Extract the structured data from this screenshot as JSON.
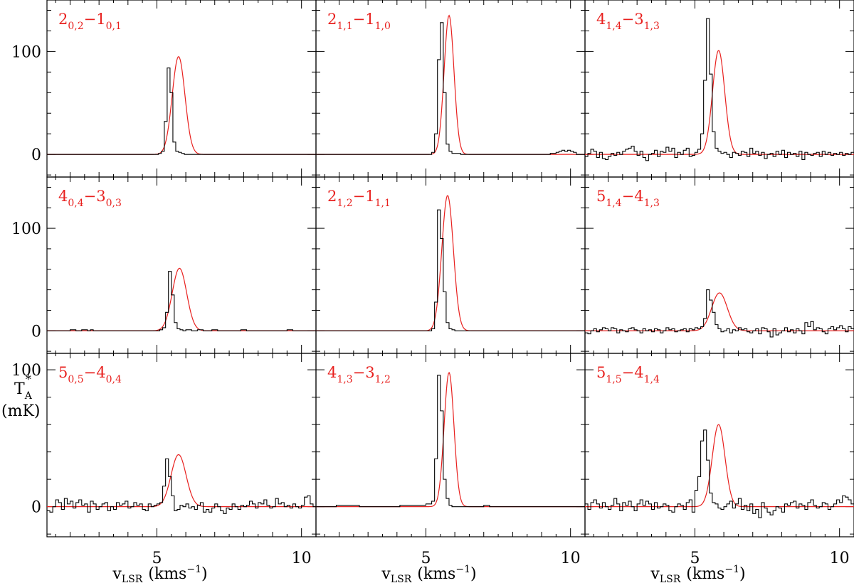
{
  "chart_data": [
    {
      "type": "line",
      "transition": {
        "base": "2",
        "sub1": "0,2",
        "dash": "−",
        "base2": "1",
        "sub2": "0,1"
      },
      "x_range": [
        1.2,
        10.5
      ],
      "y_range": [
        -22,
        150
      ],
      "series": [
        {
          "style": "histogram",
          "values_mK": [
            0,
            0,
            0,
            0,
            0,
            0,
            0,
            0,
            0,
            0,
            0,
            0,
            0,
            0,
            0,
            0,
            0,
            0,
            0,
            0,
            0,
            0,
            0,
            0,
            0,
            0,
            0,
            0,
            0,
            0,
            0,
            0,
            0,
            0,
            0,
            0,
            0,
            0,
            0,
            1,
            3,
            32,
            84,
            60,
            12,
            3,
            2,
            1,
            0,
            0,
            0,
            0,
            0,
            0,
            0,
            0,
            0,
            0,
            0,
            0,
            0,
            0,
            0,
            0,
            0,
            0,
            0,
            0,
            0,
            0,
            0,
            0,
            0,
            0,
            0,
            0,
            0,
            0,
            0,
            0,
            0,
            0,
            0,
            0,
            0,
            0,
            0,
            0,
            0,
            0,
            0,
            0,
            0,
            0
          ]
        },
        {
          "style": "gaussian",
          "peak": 95,
          "center": 5.75,
          "sigma": 0.22
        }
      ]
    },
    {
      "type": "line",
      "transition": {
        "base": "2",
        "sub1": "1,1",
        "dash": "−",
        "base2": "1",
        "sub2": "1,0"
      },
      "x_range": [
        1.2,
        10.5
      ],
      "y_range": [
        -22,
        150
      ],
      "series": [
        {
          "style": "histogram",
          "values_mK": [
            0,
            0,
            0,
            0,
            0,
            0,
            0,
            0,
            0,
            0,
            0,
            0,
            0,
            0,
            0,
            0,
            0,
            0,
            0,
            0,
            0,
            0,
            0,
            0,
            0,
            0,
            0,
            0,
            0,
            0,
            0,
            0,
            0,
            0,
            0,
            0,
            0,
            0,
            0,
            0,
            2,
            20,
            92,
            128,
            60,
            10,
            3,
            1,
            1,
            1,
            0,
            0,
            0,
            0,
            0,
            0,
            0,
            0,
            0,
            0,
            0,
            0,
            0,
            0,
            0,
            0,
            0,
            0,
            0,
            0,
            0,
            0,
            0,
            0,
            0,
            0,
            0,
            0,
            0,
            0,
            0,
            1,
            1,
            2,
            3,
            4,
            3,
            4,
            3,
            2,
            0,
            0,
            0
          ]
        },
        {
          "style": "gaussian",
          "peak": 135,
          "center": 5.8,
          "sigma": 0.17
        }
      ]
    },
    {
      "type": "line",
      "transition": {
        "base": "4",
        "sub1": "1,4",
        "dash": "−",
        "base2": "3",
        "sub2": "1,3"
      },
      "x_range": [
        1.2,
        10.5
      ],
      "y_range": [
        -22,
        150
      ],
      "series": [
        {
          "style": "histogram",
          "values_mK": [
            -2,
            1,
            5,
            3,
            -3,
            2,
            -4,
            -5,
            -2,
            1,
            -1,
            2,
            0,
            3,
            5,
            6,
            8,
            3,
            -1,
            3,
            -3,
            -6,
            0,
            1,
            4,
            -2,
            3,
            2,
            7,
            3,
            6,
            -3,
            2,
            0,
            4,
            6,
            -2,
            -1,
            2,
            5,
            20,
            72,
            132,
            78,
            22,
            6,
            3,
            1,
            2,
            0,
            -3,
            2,
            1,
            -1,
            3,
            2,
            -2,
            6,
            1,
            3,
            -1,
            2,
            -4,
            0,
            1,
            -2,
            3,
            0,
            4,
            -3,
            2,
            0,
            1,
            -2,
            3,
            -5,
            2,
            0,
            -1,
            1,
            2,
            -2,
            3,
            0,
            2,
            -1,
            1,
            0,
            2,
            -1,
            1,
            0,
            2
          ]
        },
        {
          "style": "gaussian",
          "peak": 101,
          "center": 5.82,
          "sigma": 0.21
        }
      ]
    },
    {
      "type": "line",
      "transition": {
        "base": "4",
        "sub1": "0,4",
        "dash": "−",
        "base2": "3",
        "sub2": "0,3"
      },
      "x_range": [
        1.2,
        10.5
      ],
      "y_range": [
        -22,
        150
      ],
      "series": [
        {
          "style": "histogram",
          "values_mK": [
            0,
            0,
            0,
            0,
            0,
            0,
            0,
            0,
            1,
            1,
            0,
            0,
            1,
            1,
            0,
            1,
            0,
            0,
            0,
            0,
            0,
            0,
            0,
            0,
            0,
            0,
            0,
            0,
            0,
            0,
            0,
            0,
            0,
            0,
            0,
            0,
            0,
            0,
            0,
            1,
            3,
            18,
            58,
            35,
            8,
            2,
            1,
            0,
            1,
            1,
            0,
            0,
            1,
            1,
            0,
            0,
            0,
            1,
            1,
            0,
            0,
            0,
            0,
            0,
            0,
            0,
            0,
            1,
            1,
            0,
            0,
            0,
            0,
            0,
            0,
            0,
            0,
            0,
            0,
            0,
            0,
            0,
            0,
            1,
            1,
            0,
            0,
            0,
            0,
            0,
            0,
            0,
            0
          ]
        },
        {
          "style": "gaussian",
          "peak": 61,
          "center": 5.78,
          "sigma": 0.25
        }
      ]
    },
    {
      "type": "line",
      "transition": {
        "base": "2",
        "sub1": "1,2",
        "dash": "−",
        "base2": "1",
        "sub2": "1,1"
      },
      "x_range": [
        1.2,
        10.5
      ],
      "y_range": [
        -22,
        150
      ],
      "series": [
        {
          "style": "histogram",
          "values_mK": [
            0,
            0,
            0,
            0,
            0,
            0,
            0,
            0,
            0,
            0,
            0,
            0,
            0,
            0,
            0,
            0,
            0,
            0,
            0,
            0,
            0,
            0,
            0,
            0,
            0,
            0,
            0,
            0,
            0,
            0,
            0,
            0,
            0,
            0,
            0,
            0,
            0,
            0,
            0,
            0,
            2,
            28,
            118,
            90,
            38,
            8,
            2,
            1,
            0,
            0,
            0,
            0,
            0,
            0,
            0,
            0,
            0,
            0,
            0,
            0,
            0,
            0,
            0,
            0,
            0,
            0,
            0,
            0,
            0,
            0,
            0,
            0,
            0,
            0,
            0,
            0,
            0,
            0,
            0,
            0,
            0,
            0,
            0,
            0,
            0,
            0,
            0,
            0,
            0,
            0,
            0,
            0,
            0
          ]
        },
        {
          "style": "gaussian",
          "peak": 132,
          "center": 5.75,
          "sigma": 0.2
        }
      ]
    },
    {
      "type": "line",
      "transition": {
        "base": "5",
        "sub1": "1,4",
        "dash": "−",
        "base2": "4",
        "sub2": "1,3"
      },
      "x_range": [
        1.2,
        10.5
      ],
      "y_range": [
        -22,
        150
      ],
      "series": [
        {
          "style": "histogram",
          "values_mK": [
            -2,
            -3,
            0,
            2,
            -1,
            1,
            3,
            2,
            0,
            3,
            2,
            -2,
            1,
            0,
            -1,
            2,
            3,
            1,
            0,
            -2,
            2,
            0,
            1,
            -1,
            2,
            1,
            -2,
            0,
            3,
            1,
            2,
            -1,
            0,
            1,
            2,
            -1,
            2,
            1,
            3,
            2,
            4,
            12,
            40,
            30,
            18,
            6,
            2,
            -1,
            0,
            2,
            -2,
            1,
            0,
            3,
            1,
            2,
            -1,
            -2,
            0,
            2,
            -3,
            3,
            2,
            -1,
            -6,
            2,
            -4,
            -2,
            0,
            3,
            -1,
            1,
            -2,
            2,
            0,
            -3,
            8,
            4,
            9,
            1,
            3,
            2,
            -1,
            -3,
            2,
            4,
            1,
            3,
            5,
            2,
            -1,
            4,
            2
          ]
        },
        {
          "style": "gaussian",
          "peak": 37,
          "center": 5.85,
          "sigma": 0.27
        }
      ]
    },
    {
      "type": "line",
      "transition": {
        "base": "5",
        "sub1": "0,5",
        "dash": "−",
        "base2": "4",
        "sub2": "0,4"
      },
      "x_range": [
        1.2,
        10.5
      ],
      "y_range": [
        -22,
        112
      ],
      "series": [
        {
          "style": "histogram",
          "values_mK": [
            -3,
            -4,
            0,
            5,
            3,
            -2,
            6,
            2,
            4,
            -1,
            3,
            5,
            1,
            2,
            -4,
            4,
            2,
            -2,
            0,
            2,
            3,
            -3,
            0,
            -2,
            3,
            1,
            2,
            4,
            -1,
            0,
            3,
            1,
            2,
            -2,
            -3,
            2,
            0,
            1,
            2,
            3,
            15,
            35,
            22,
            8,
            -3,
            -2,
            1,
            0,
            2,
            -1,
            0,
            -2,
            1,
            3,
            -4,
            -2,
            -4,
            -1,
            2,
            0,
            -3,
            -5,
            -1,
            -2,
            2,
            0,
            -2,
            1,
            0,
            1,
            4,
            2,
            -1,
            3,
            2,
            5,
            1,
            -1,
            0,
            6,
            2,
            3,
            0,
            1,
            -1,
            2,
            0,
            -1,
            1,
            7,
            8,
            2,
            0
          ]
        },
        {
          "style": "gaussian",
          "peak": 38,
          "center": 5.75,
          "sigma": 0.26
        }
      ]
    },
    {
      "type": "line",
      "transition": {
        "base": "4",
        "sub1": "1,3",
        "dash": "−",
        "base2": "3",
        "sub2": "1,2"
      },
      "x_range": [
        1.2,
        10.5
      ],
      "y_range": [
        -22,
        112
      ],
      "series": [
        {
          "style": "histogram",
          "values_mK": [
            0,
            0,
            0,
            0,
            0,
            0,
            0,
            1,
            1,
            1,
            1,
            1,
            1,
            1,
            1,
            0,
            0,
            0,
            0,
            0,
            0,
            0,
            0,
            0,
            0,
            0,
            0,
            0,
            0,
            1,
            1,
            1,
            1,
            1,
            1,
            1,
            1,
            1,
            2,
            2,
            4,
            35,
            96,
            70,
            20,
            6,
            1,
            0,
            0,
            0,
            0,
            0,
            0,
            0,
            0,
            0,
            0,
            0,
            1,
            1,
            0,
            0,
            0,
            0,
            0,
            0,
            0,
            0,
            0,
            0,
            0,
            0,
            0,
            0,
            0,
            0,
            0,
            0,
            0,
            0,
            0,
            0,
            0,
            0,
            0,
            0,
            0,
            0,
            0,
            0,
            0,
            0,
            0
          ]
        },
        {
          "style": "gaussian",
          "peak": 98,
          "center": 5.8,
          "sigma": 0.17
        }
      ]
    },
    {
      "type": "line",
      "transition": {
        "base": "5",
        "sub1": "1,5",
        "dash": "−",
        "base2": "4",
        "sub2": "1,4"
      },
      "x_range": [
        1.2,
        10.5
      ],
      "y_range": [
        -22,
        112
      ],
      "series": [
        {
          "style": "histogram",
          "values_mK": [
            2,
            -2,
            3,
            5,
            2,
            -1,
            3,
            0,
            -2,
            1,
            6,
            2,
            -3,
            3,
            1,
            4,
            0,
            -3,
            2,
            5,
            1,
            4,
            2,
            -2,
            3,
            -1,
            0,
            2,
            1,
            -3,
            -4,
            0,
            2,
            1,
            -2,
            3,
            5,
            -4,
            12,
            22,
            48,
            56,
            34,
            10,
            3,
            2,
            -1,
            -2,
            0,
            2,
            4,
            -1,
            2,
            6,
            -2,
            1,
            -3,
            2,
            -5,
            -2,
            -8,
            3,
            -1,
            -4,
            -6,
            -3,
            0,
            -1,
            -4,
            2,
            1,
            3,
            4,
            -1,
            2,
            1,
            -2,
            3,
            5,
            1,
            -1,
            0,
            3,
            2,
            -2,
            0,
            2,
            5,
            3,
            8,
            7,
            5,
            2
          ]
        },
        {
          "style": "gaussian",
          "peak": 60,
          "center": 5.82,
          "sigma": 0.22
        }
      ]
    }
  ],
  "x_ticks": [
    5,
    10
  ],
  "y_ticks": [
    0,
    100
  ],
  "xlabel": {
    "main": "v",
    "sub": "LSR",
    "unit": "(kms",
    "sup": "−1",
    "close": ")"
  },
  "ylabel": {
    "main": "T",
    "sub": "A",
    "sup": "*",
    "unit": "(mK)"
  },
  "colors": {
    "data": "#000000",
    "fit": "#e8201e",
    "label": "#e8201e",
    "frame": "#000000"
  }
}
